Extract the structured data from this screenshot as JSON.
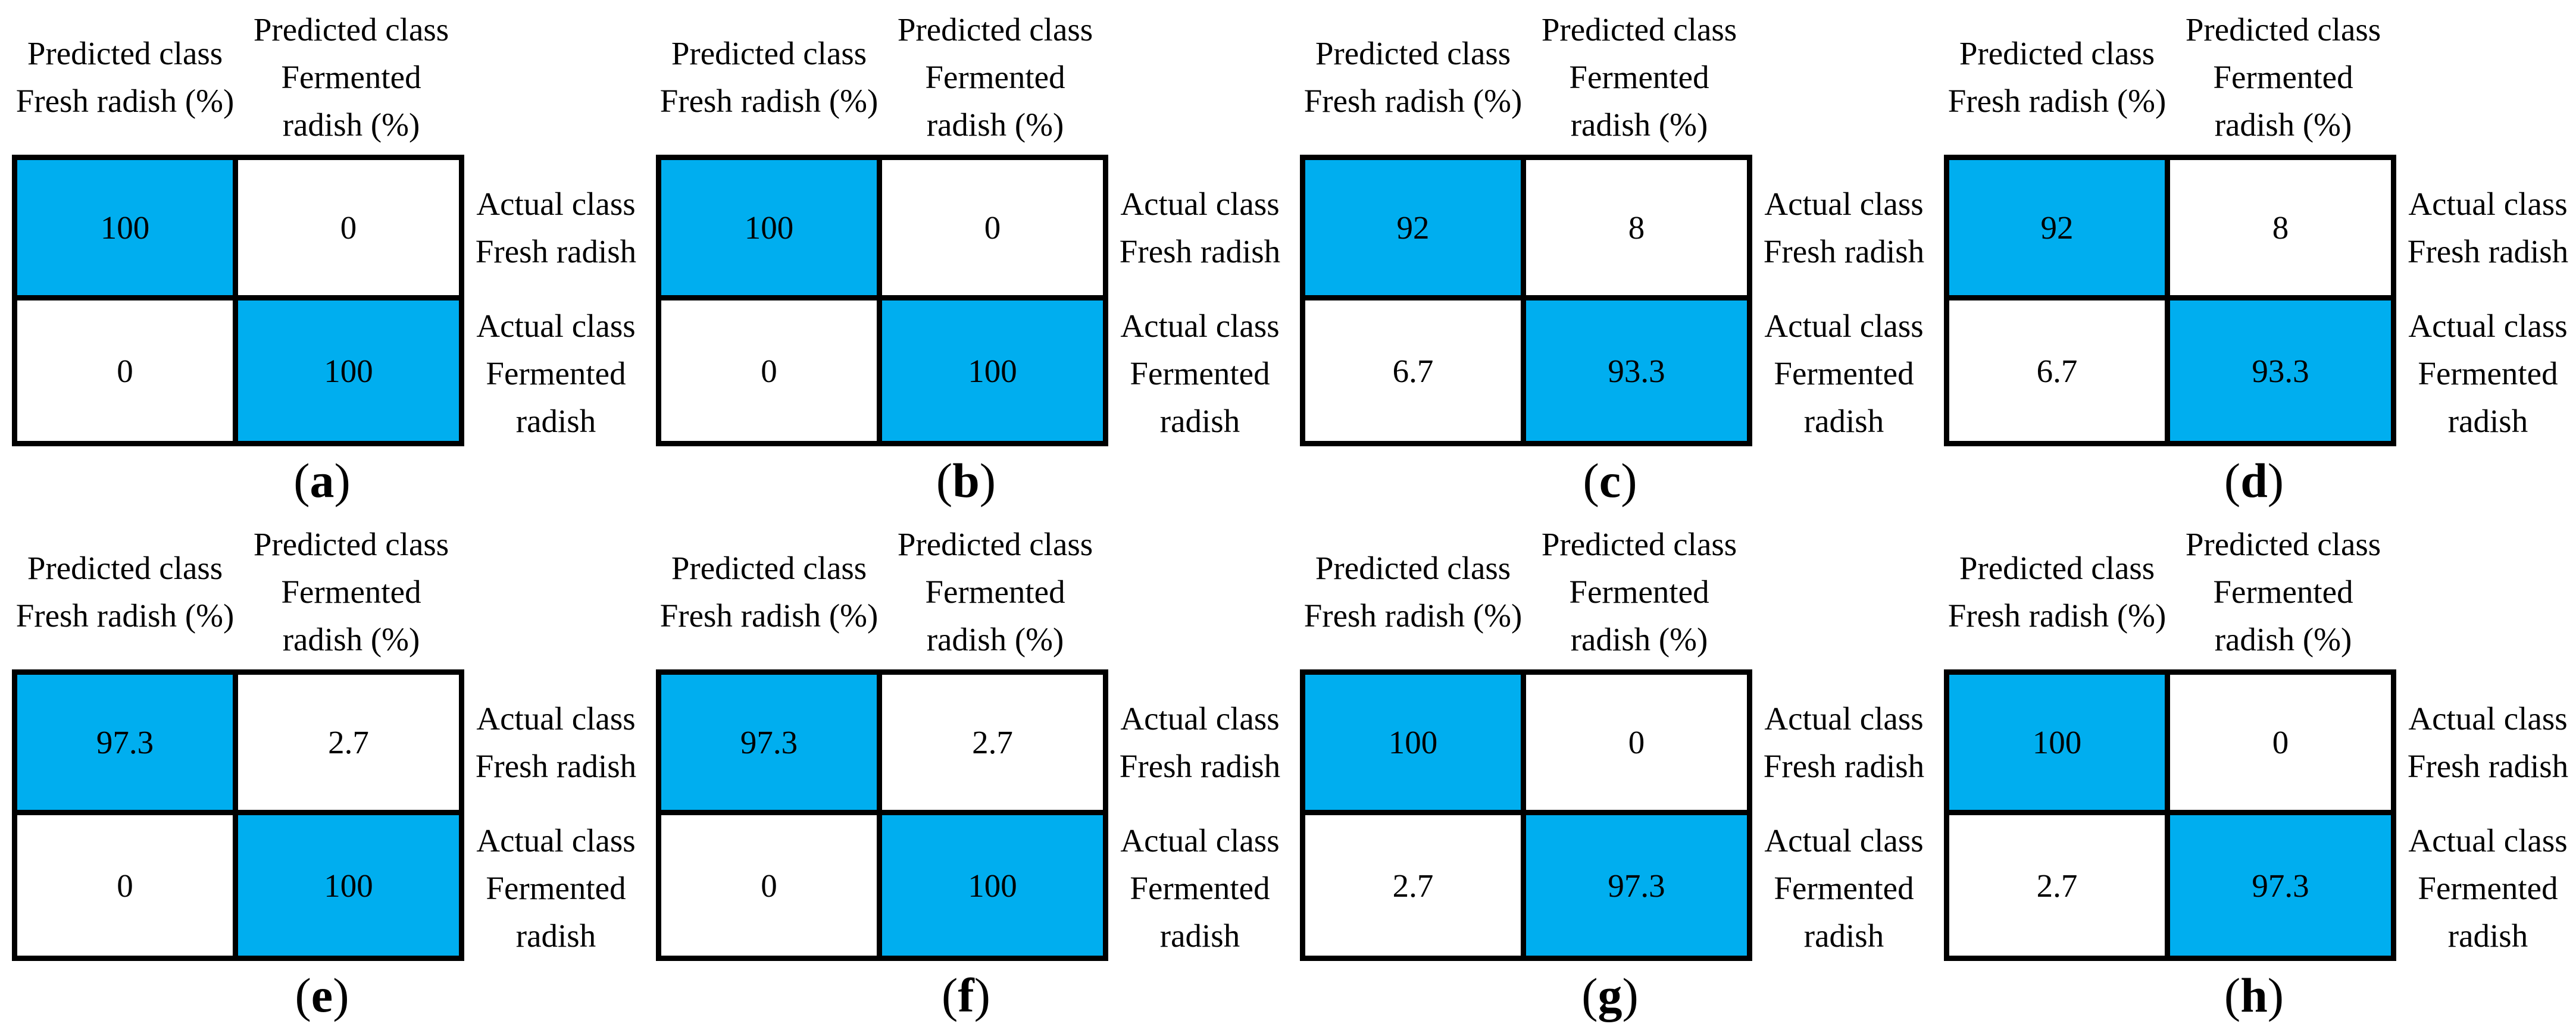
{
  "figure": {
    "colors": {
      "highlight": "#00AEEF",
      "border": "#000000",
      "text": "#000000",
      "background": "#FFFFFF"
    },
    "column_headers": {
      "fresh": {
        "line1": "Predicted class",
        "line2": "Fresh radish (%)"
      },
      "fermented": {
        "line1": "Predicted class",
        "line2": "Fermented",
        "line3": "radish (%)"
      }
    },
    "row_labels": {
      "fresh": {
        "line1": "Actual class",
        "line2": "Fresh radish"
      },
      "fermented": {
        "line1": "Actual class",
        "line2": "Fermented",
        "line3": "radish"
      }
    },
    "caption_open": "(",
    "caption_close": ")",
    "panels": [
      {
        "letter": "a",
        "cells": {
          "r1c1": "100",
          "r1c2": "0",
          "r2c1": "0",
          "r2c2": "100"
        }
      },
      {
        "letter": "b",
        "cells": {
          "r1c1": "100",
          "r1c2": "0",
          "r2c1": "0",
          "r2c2": "100"
        }
      },
      {
        "letter": "c",
        "cells": {
          "r1c1": "92",
          "r1c2": "8",
          "r2c1": "6.7",
          "r2c2": "93.3"
        }
      },
      {
        "letter": "d",
        "cells": {
          "r1c1": "92",
          "r1c2": "8",
          "r2c1": "6.7",
          "r2c2": "93.3"
        }
      },
      {
        "letter": "e",
        "cells": {
          "r1c1": "97.3",
          "r1c2": "2.7",
          "r2c1": "0",
          "r2c2": "100"
        }
      },
      {
        "letter": "f",
        "cells": {
          "r1c1": "97.3",
          "r1c2": "2.7",
          "r2c1": "0",
          "r2c2": "100"
        }
      },
      {
        "letter": "g",
        "cells": {
          "r1c1": "100",
          "r1c2": "0",
          "r2c1": "2.7",
          "r2c2": "97.3"
        }
      },
      {
        "letter": "h",
        "cells": {
          "r1c1": "100",
          "r1c2": "0",
          "r2c1": "2.7",
          "r2c2": "97.3"
        }
      }
    ]
  },
  "chart_data": [
    {
      "type": "heatmap",
      "label": "(a)",
      "x_labels": [
        "Predicted class Fresh radish (%)",
        "Predicted class Fermented radish (%)"
      ],
      "y_labels": [
        "Actual class Fresh radish",
        "Actual class Fermented radish"
      ],
      "values": [
        [
          100,
          0
        ],
        [
          0,
          100
        ]
      ],
      "highlighted_cells": "diagonal",
      "highlight_color": "#00AEEF"
    },
    {
      "type": "heatmap",
      "label": "(b)",
      "x_labels": [
        "Predicted class Fresh radish (%)",
        "Predicted class Fermented radish (%)"
      ],
      "y_labels": [
        "Actual class Fresh radish",
        "Actual class Fermented radish"
      ],
      "values": [
        [
          100,
          0
        ],
        [
          0,
          100
        ]
      ],
      "highlighted_cells": "diagonal",
      "highlight_color": "#00AEEF"
    },
    {
      "type": "heatmap",
      "label": "(c)",
      "x_labels": [
        "Predicted class Fresh radish (%)",
        "Predicted class Fermented radish (%)"
      ],
      "y_labels": [
        "Actual class Fresh radish",
        "Actual class Fermented radish"
      ],
      "values": [
        [
          92,
          8
        ],
        [
          6.7,
          93.3
        ]
      ],
      "highlighted_cells": "diagonal",
      "highlight_color": "#00AEEF"
    },
    {
      "type": "heatmap",
      "label": "(d)",
      "x_labels": [
        "Predicted class Fresh radish (%)",
        "Predicted class Fermented radish (%)"
      ],
      "y_labels": [
        "Actual class Fresh radish",
        "Actual class Fermented radish"
      ],
      "values": [
        [
          92,
          8
        ],
        [
          6.7,
          93.3
        ]
      ],
      "highlighted_cells": "diagonal",
      "highlight_color": "#00AEEF"
    },
    {
      "type": "heatmap",
      "label": "(e)",
      "x_labels": [
        "Predicted class Fresh radish (%)",
        "Predicted class Fermented radish (%)"
      ],
      "y_labels": [
        "Actual class Fresh radish",
        "Actual class Fermented radish"
      ],
      "values": [
        [
          97.3,
          2.7
        ],
        [
          0,
          100
        ]
      ],
      "highlighted_cells": "diagonal",
      "highlight_color": "#00AEEF"
    },
    {
      "type": "heatmap",
      "label": "(f)",
      "x_labels": [
        "Predicted class Fresh radish (%)",
        "Predicted class Fermented radish (%)"
      ],
      "y_labels": [
        "Actual class Fresh radish",
        "Actual class Fermented radish"
      ],
      "values": [
        [
          97.3,
          2.7
        ],
        [
          0,
          100
        ]
      ],
      "highlighted_cells": "diagonal",
      "highlight_color": "#00AEEF"
    },
    {
      "type": "heatmap",
      "label": "(g)",
      "x_labels": [
        "Predicted class Fresh radish (%)",
        "Predicted class Fermented radish (%)"
      ],
      "y_labels": [
        "Actual class Fresh radish",
        "Actual class Fermented radish"
      ],
      "values": [
        [
          100,
          0
        ],
        [
          2.7,
          97.3
        ]
      ],
      "highlighted_cells": "diagonal",
      "highlight_color": "#00AEEF"
    },
    {
      "type": "heatmap",
      "label": "(h)",
      "x_labels": [
        "Predicted class Fresh radish (%)",
        "Predicted class Fermented radish (%)"
      ],
      "y_labels": [
        "Actual class Fresh radish",
        "Actual class Fermented radish"
      ],
      "values": [
        [
          100,
          0
        ],
        [
          2.7,
          97.3
        ]
      ],
      "highlighted_cells": "diagonal",
      "highlight_color": "#00AEEF"
    }
  ]
}
